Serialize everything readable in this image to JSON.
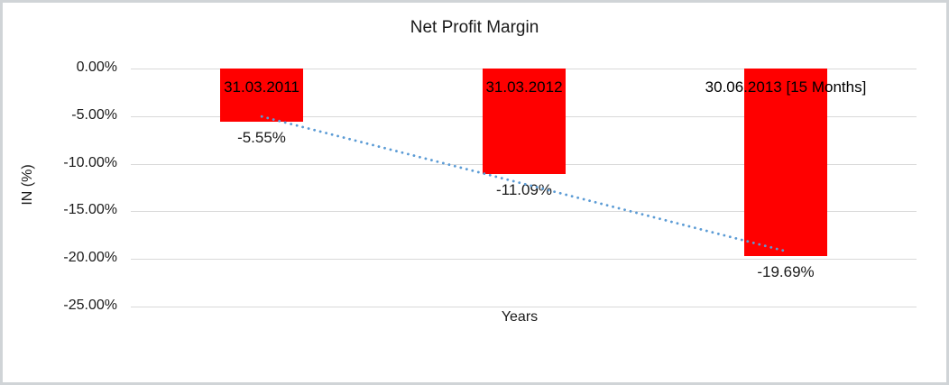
{
  "chart_data": {
    "type": "bar",
    "title": "Net Profit Margin",
    "xlabel": "Years",
    "ylabel": "IN (%)",
    "categories": [
      "31.03.2011",
      "31.03.2012",
      "30.06.2013 [15 Months]"
    ],
    "values": [
      -5.55,
      -11.09,
      -19.69
    ],
    "value_labels": [
      "-5.55%",
      "-11.09%",
      "-19.69%"
    ],
    "y_tick_values": [
      0,
      -5,
      -10,
      -15,
      -20,
      -25
    ],
    "y_tick_labels": [
      "0.00%",
      "-5.00%",
      "-10.00%",
      "-15.00%",
      "-20.00%",
      "-25.00%"
    ],
    "ylim": [
      -25,
      0
    ],
    "grid": true,
    "legend": "none",
    "bar_color": "#FF0000",
    "gridline_color": "#D9D9D9",
    "text_color": "#1a1a1a",
    "trendline": {
      "type": "linear",
      "style": "dotted",
      "color": "#5B9BD5",
      "start_value": -5.04,
      "end_value": -19.18
    }
  }
}
